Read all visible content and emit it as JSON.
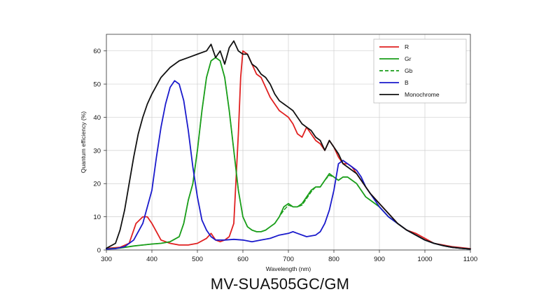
{
  "caption": "MV-SUA505GC/GM",
  "chart_data": {
    "type": "line",
    "xlabel": "Wavelength (nm)",
    "ylabel": "Quantum efficiency (%)",
    "xlim": [
      300,
      1100
    ],
    "ylim": [
      0,
      65
    ],
    "xticks": [
      300,
      400,
      500,
      600,
      700,
      800,
      900,
      1000,
      1100
    ],
    "yticks": [
      0,
      10,
      20,
      30,
      40,
      50,
      60
    ],
    "grid": true,
    "legend_position": "top-right",
    "series": [
      {
        "name": "R",
        "color": "#e02020",
        "style": "solid",
        "x": [
          300,
          330,
          350,
          365,
          380,
          390,
          400,
          420,
          440,
          460,
          480,
          500,
          520,
          530,
          540,
          550,
          560,
          570,
          580,
          590,
          595,
          600,
          610,
          620,
          630,
          640,
          650,
          660,
          670,
          680,
          690,
          700,
          710,
          720,
          730,
          740,
          750,
          760,
          770,
          780,
          790,
          800,
          810,
          820,
          830,
          840,
          850,
          860,
          870,
          880,
          900,
          920,
          940,
          960,
          980,
          1000,
          1020,
          1040,
          1060,
          1080,
          1100
        ],
        "values": [
          0.5,
          0.8,
          2,
          8,
          10,
          10,
          8,
          3,
          2,
          1.5,
          1.5,
          2,
          3.5,
          5,
          3,
          2.5,
          3,
          4,
          8,
          35,
          52,
          60,
          59,
          56,
          53,
          52,
          49,
          46,
          44,
          42,
          41,
          40,
          38,
          35,
          34,
          37,
          35,
          33,
          32,
          30,
          33,
          31,
          28,
          26,
          26,
          25,
          23,
          21,
          19,
          17,
          14,
          11,
          8,
          6,
          5,
          3.5,
          2,
          1.5,
          1,
          0.7,
          0.4
        ]
      },
      {
        "name": "Gr",
        "color": "#1a9e1a",
        "style": "solid",
        "x": [
          300,
          330,
          360,
          380,
          400,
          420,
          440,
          460,
          470,
          480,
          490,
          500,
          510,
          520,
          530,
          540,
          550,
          560,
          570,
          580,
          590,
          600,
          610,
          620,
          630,
          640,
          650,
          660,
          670,
          680,
          690,
          700,
          710,
          720,
          730,
          740,
          750,
          760,
          770,
          780,
          790,
          800,
          810,
          820,
          830,
          840,
          850,
          860,
          870,
          880,
          900,
          920,
          940,
          960,
          980,
          1000,
          1020,
          1040,
          1060,
          1080,
          1100
        ],
        "values": [
          0.3,
          0.6,
          1.2,
          1.5,
          1.8,
          2,
          2.5,
          4,
          8,
          15,
          20,
          30,
          42,
          52,
          57,
          58,
          57,
          52,
          42,
          30,
          18,
          10,
          7,
          6,
          5.5,
          5.5,
          6,
          7,
          8,
          10,
          13,
          14,
          13,
          13,
          14,
          16,
          18,
          19,
          19,
          21,
          23,
          22,
          21,
          22,
          22,
          21,
          20,
          18,
          16,
          15,
          13,
          10,
          8,
          6,
          4.5,
          3,
          2,
          1.3,
          0.8,
          0.5,
          0.3
        ]
      },
      {
        "name": "Gb",
        "color": "#1a9e1a",
        "style": "dashed",
        "x": [
          300,
          330,
          360,
          380,
          400,
          420,
          440,
          460,
          470,
          480,
          490,
          500,
          510,
          520,
          530,
          540,
          550,
          560,
          570,
          580,
          590,
          600,
          610,
          620,
          630,
          640,
          650,
          660,
          670,
          680,
          690,
          700,
          710,
          720,
          730,
          740,
          750,
          760,
          770,
          780,
          790,
          800,
          810,
          820,
          830,
          840,
          850,
          860,
          870,
          880,
          900,
          920,
          940,
          960,
          980,
          1000,
          1020,
          1040,
          1060,
          1080,
          1100
        ],
        "values": [
          0.3,
          0.6,
          1.2,
          1.5,
          1.8,
          2,
          2.5,
          4,
          8,
          15,
          20,
          30,
          42,
          52,
          57,
          58,
          57,
          52,
          42,
          30,
          18,
          10,
          7,
          6,
          5.5,
          5.5,
          6,
          7,
          8,
          10,
          12,
          13.5,
          13,
          13,
          13.5,
          15.5,
          17.5,
          19,
          19,
          21,
          22.5,
          22,
          21,
          22,
          22,
          21,
          20,
          18,
          16,
          15,
          13,
          10,
          8,
          6,
          4.5,
          3,
          2,
          1.3,
          0.8,
          0.5,
          0.3
        ]
      },
      {
        "name": "B",
        "color": "#1a1acc",
        "style": "solid",
        "x": [
          300,
          320,
          340,
          360,
          380,
          400,
          410,
          420,
          430,
          440,
          450,
          460,
          470,
          480,
          490,
          500,
          510,
          520,
          530,
          540,
          560,
          580,
          600,
          620,
          640,
          660,
          680,
          700,
          710,
          720,
          740,
          760,
          770,
          780,
          790,
          800,
          810,
          820,
          830,
          840,
          850,
          860,
          870,
          880,
          900,
          920,
          940,
          960,
          980,
          1000,
          1020,
          1040,
          1060,
          1080,
          1100
        ],
        "values": [
          0.3,
          0.4,
          1,
          3,
          8,
          18,
          28,
          37,
          44,
          49,
          51,
          50,
          45,
          36,
          25,
          16,
          9,
          6,
          4,
          3,
          3,
          3.2,
          3,
          2.5,
          3,
          3.5,
          4.5,
          5,
          5.5,
          5,
          4,
          4.5,
          5.5,
          8,
          12,
          18,
          26,
          27,
          26,
          25,
          24,
          22,
          19,
          17,
          13,
          10,
          8,
          6,
          4.5,
          3,
          2,
          1.3,
          0.8,
          0.5,
          0.3
        ]
      },
      {
        "name": "Monochrome",
        "color": "#111111",
        "style": "solid",
        "x": [
          300,
          320,
          330,
          340,
          350,
          360,
          370,
          380,
          390,
          400,
          420,
          440,
          460,
          480,
          500,
          520,
          530,
          540,
          550,
          560,
          570,
          580,
          590,
          600,
          610,
          620,
          630,
          640,
          650,
          660,
          670,
          680,
          690,
          700,
          710,
          720,
          730,
          740,
          750,
          760,
          770,
          780,
          790,
          800,
          810,
          820,
          830,
          840,
          850,
          860,
          870,
          880,
          900,
          920,
          940,
          960,
          980,
          1000,
          1020,
          1040,
          1060,
          1080,
          1100
        ],
        "values": [
          0.5,
          2,
          6,
          12,
          20,
          28,
          35,
          40,
          44,
          47,
          52,
          55,
          57,
          58,
          59,
          60,
          62,
          58,
          60,
          56,
          61,
          63,
          60,
          59,
          59,
          56,
          55,
          53,
          52,
          50,
          47,
          45,
          44,
          43,
          42,
          40,
          38,
          37,
          36,
          34,
          33,
          30,
          33,
          31,
          29,
          26,
          25,
          24,
          23,
          21,
          19,
          17,
          14,
          11,
          8,
          6,
          4.5,
          3,
          2,
          1.3,
          0.8,
          0.5,
          0.3
        ]
      }
    ]
  }
}
